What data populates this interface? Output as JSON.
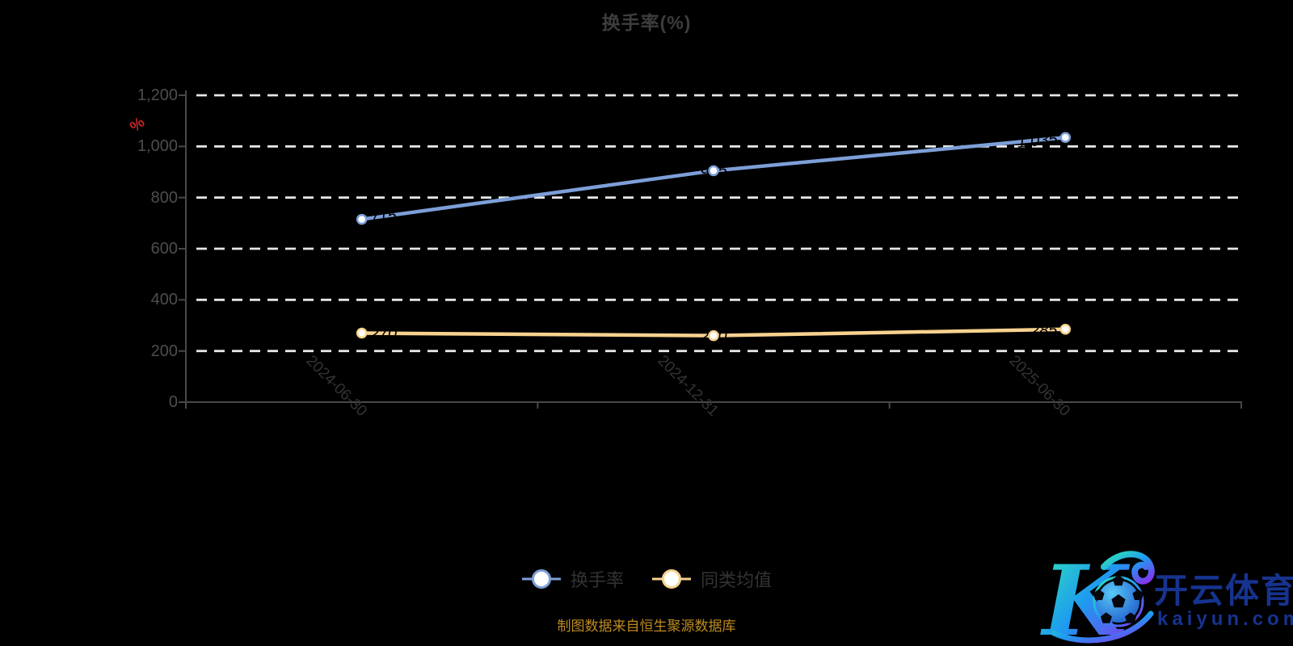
{
  "title": "换手率(%)",
  "y_axis_name": "%",
  "caption": "制图数据来自恒生聚源数据库",
  "legend": {
    "items": [
      {
        "label": "换手率"
      },
      {
        "label": "同类均值"
      }
    ]
  },
  "watermark": {
    "monogram": "K",
    "brand_name": "开云体育",
    "brand_domain": "kaiyun.com"
  },
  "colors": {
    "background": "#000000",
    "title_text": "#3d3d3d",
    "axis_line": "#484848",
    "y_tick_label": "#4d4d4d",
    "x_tick_label": "#333333",
    "gridline": "#e6e6e6",
    "y_axis_name_red": "#c1282a",
    "series_turnover_blue": "#7d9fd8",
    "series_average_yellow": "#f7d28f",
    "marker_fill": "#ffffff",
    "point_label": "#000000",
    "caption_gold": "#bd8a1f",
    "watermark_navy": "#16338f"
  },
  "chart_data": {
    "type": "line",
    "title": "换手率(%)",
    "categories": [
      "2024-06-30",
      "2024-12-31",
      "2025-06-30"
    ],
    "series": [
      {
        "name": "换手率",
        "color": "#7d9fd8",
        "values": [
          715,
          905,
          1035
        ]
      },
      {
        "name": "同类均值",
        "color": "#f7d28f",
        "values": [
          270,
          260,
          285
        ]
      }
    ],
    "xlabel": "",
    "ylabel": "%",
    "ylim": [
      0,
      1200
    ],
    "yticks": [
      0,
      200,
      400,
      600,
      800,
      1000,
      1200
    ],
    "x_label_rotation_deg": 45,
    "grid": "horizontal-dashed",
    "legend_position": "bottom"
  }
}
